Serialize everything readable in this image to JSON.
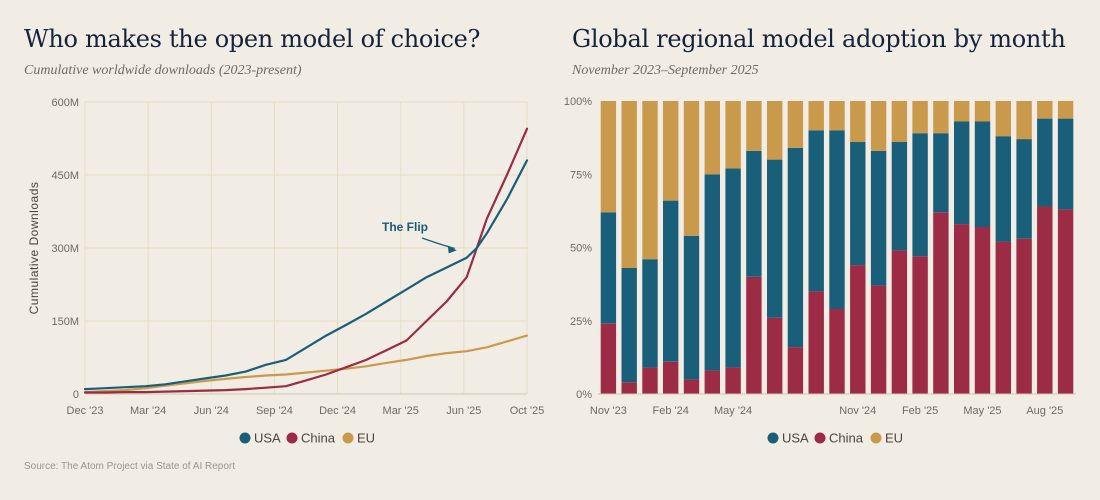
{
  "colors": {
    "USA": "#1a5f7a",
    "China": "#9c2b45",
    "EU": "#c99a4c",
    "grid": "#e6dcc2",
    "axis": "#cfc6b0"
  },
  "source": "Source: The Atom Project via State of AI Report",
  "chart_data": [
    {
      "type": "line",
      "title": "Who makes the open model of choice?",
      "subtitle": "Cumulative worldwide downloads (2023-present)",
      "ylabel": "Cumulative Downloads",
      "xlabel": "",
      "x_ticks": [
        "Dec '23",
        "Mar '24",
        "Jun '24",
        "Sep '24",
        "Dec '24",
        "Mar '25",
        "Jun '25",
        "Oct '25"
      ],
      "y_ticks": [
        "0",
        "150M",
        "300M",
        "450M",
        "600M"
      ],
      "ylim": [
        0,
        600
      ],
      "y_unit": "M",
      "grid": true,
      "legend_position": "bottom",
      "annotation": {
        "text": "The Flip",
        "x": 18.7,
        "y": 295
      },
      "series": [
        {
          "name": "USA",
          "x": [
            0,
            1,
            2,
            3,
            4,
            5,
            6,
            7,
            8,
            9,
            10,
            11,
            12,
            13,
            14,
            15,
            16,
            17,
            18,
            19,
            19.5,
            20,
            21,
            22
          ],
          "values": [
            10,
            12,
            14,
            16,
            20,
            26,
            32,
            38,
            46,
            60,
            70,
            95,
            120,
            142,
            165,
            190,
            215,
            240,
            260,
            280,
            300,
            330,
            400,
            480
          ]
        },
        {
          "name": "China",
          "x": [
            0,
            1,
            2,
            3,
            4,
            5,
            6,
            7,
            8,
            9,
            10,
            11,
            12,
            13,
            14,
            15,
            16,
            17,
            18,
            19,
            19.5,
            20,
            21,
            22
          ],
          "values": [
            3,
            3,
            4,
            4,
            5,
            6,
            7,
            8,
            10,
            13,
            16,
            28,
            40,
            55,
            70,
            90,
            110,
            150,
            190,
            240,
            300,
            360,
            450,
            545
          ]
        },
        {
          "name": "EU",
          "x": [
            0,
            1,
            2,
            3,
            4,
            5,
            6,
            7,
            8,
            9,
            10,
            11,
            12,
            13,
            14,
            15,
            16,
            17,
            18,
            19,
            20,
            21,
            22
          ],
          "values": [
            4,
            6,
            8,
            12,
            17,
            22,
            27,
            31,
            35,
            38,
            40,
            44,
            48,
            52,
            57,
            64,
            70,
            78,
            84,
            88,
            96,
            108,
            120
          ]
        }
      ]
    },
    {
      "type": "bar",
      "stacked": true,
      "title": "Global regional model adoption by month",
      "subtitle": "November 2023–September 2025",
      "x_ticks": [
        "Nov '23",
        "Feb '24",
        "May '24",
        "Nov '24",
        "Feb '25",
        "May '25",
        "Aug '25"
      ],
      "x_tick_index": [
        0,
        3,
        6,
        12,
        15,
        18,
        21
      ],
      "y_ticks": [
        "0%",
        "25%",
        "50%",
        "75%",
        "100%"
      ],
      "ylim": [
        0,
        100
      ],
      "legend_position": "bottom",
      "categories": [
        "Nov '23",
        "Dec '23",
        "Jan '24",
        "Feb '24",
        "Mar '24",
        "Apr '24",
        "May '24",
        "Jun '24",
        "Jul '24",
        "Aug '24",
        "Sep '24",
        "Oct '24",
        "Nov '24",
        "Dec '24",
        "Jan '25",
        "Feb '25",
        "Mar '25",
        "Apr '25",
        "May '25",
        "Jun '25",
        "Jul '25",
        "Aug '25",
        "Sep '25"
      ],
      "series": [
        {
          "name": "China",
          "values": [
            24,
            4,
            9,
            11,
            5,
            8,
            9,
            40,
            26,
            16,
            35,
            29,
            44,
            37,
            49,
            47,
            62,
            58,
            57,
            52,
            53,
            64,
            63
          ]
        },
        {
          "name": "USA",
          "values": [
            38,
            39,
            37,
            55,
            49,
            67,
            68,
            43,
            54,
            68,
            55,
            61,
            42,
            46,
            37,
            42,
            27,
            35,
            36,
            36,
            34,
            30,
            31
          ]
        },
        {
          "name": "EU",
          "values": [
            38,
            57,
            54,
            34,
            46,
            25,
            23,
            17,
            20,
            16,
            10,
            10,
            14,
            17,
            14,
            11,
            11,
            7,
            7,
            12,
            13,
            6,
            6
          ]
        }
      ]
    }
  ]
}
